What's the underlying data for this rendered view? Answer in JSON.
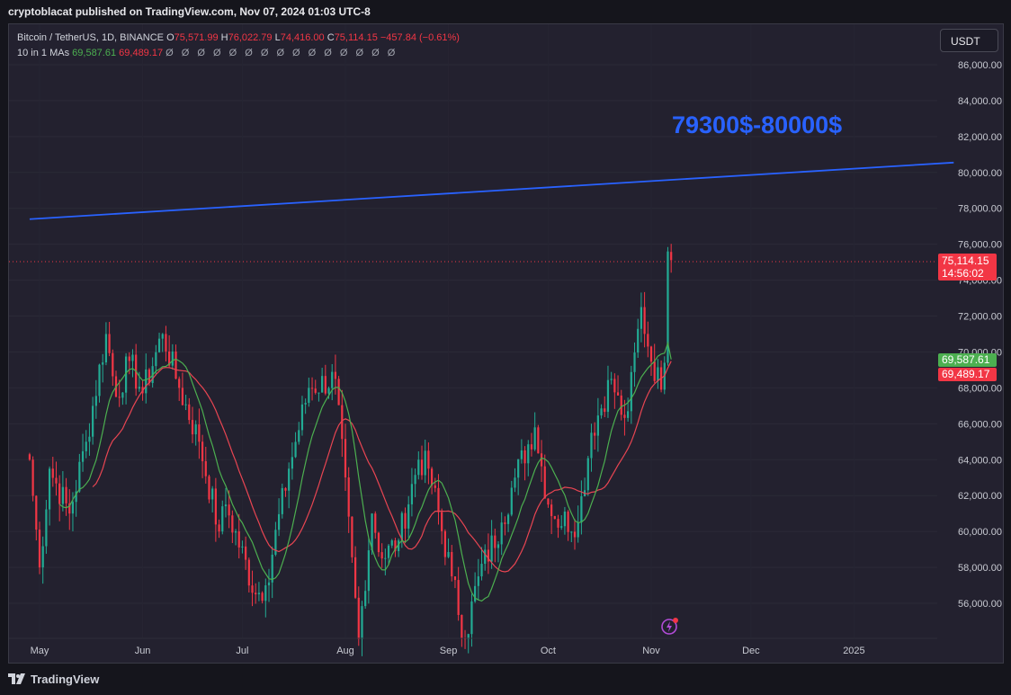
{
  "header": {
    "publisher_text": "cryptoblacat published on TradingView.com, Nov 07, 2024 01:03 UTC-8"
  },
  "legend": {
    "symbol": "Bitcoin / TetherUS, 1D, BINANCE",
    "o_label": "O",
    "o_value": "75,571.99",
    "h_label": "H",
    "h_value": "76,022.79",
    "l_label": "L",
    "l_value": "74,416.00",
    "c_label": "C",
    "c_value": "75,114.15",
    "change": "−457.84 (−0.61%)",
    "indicator_label": "10 in 1 MAs",
    "ma1_value": "69,587.61",
    "ma2_value": "69,489.17",
    "extra_values": "Ø Ø Ø Ø Ø Ø Ø Ø Ø Ø Ø Ø Ø Ø Ø"
  },
  "currency_button": {
    "label": "USDT"
  },
  "price_tags": {
    "last_price": "75,114.15",
    "countdown": "14:56:02",
    "ma1": "69,587.61",
    "ma2": "69,489.17"
  },
  "annotation": {
    "text": "79300$-80000$"
  },
  "footer": {
    "brand": "TradingView"
  },
  "colors": {
    "up": "#22ab94",
    "down": "#f23645",
    "ma_fast": "#4caf50",
    "ma_slow": "#e84552",
    "trendline": "#2962ff",
    "background": "#23212f"
  },
  "chart_data": {
    "type": "candlestick",
    "symbol": "Bitcoin / TetherUS, 1D, BINANCE",
    "y_axis": {
      "range": [
        54000,
        88000
      ],
      "ticks": [
        "56,000.00",
        "58,000.00",
        "60,000.00",
        "62,000.00",
        "64,000.00",
        "66,000.00",
        "68,000.00",
        "70,000.00",
        "72,000.00",
        "74,000.00",
        "76,000.00",
        "78,000.00",
        "80,000.00",
        "82,000.00",
        "84,000.00",
        "86,000.00"
      ]
    },
    "x_axis": {
      "range": [
        "2024-04-28",
        "2025-01-31"
      ],
      "ticks": [
        {
          "label": "May",
          "date": "2024-05-01"
        },
        {
          "label": "Jun",
          "date": "2024-06-01"
        },
        {
          "label": "Jul",
          "date": "2024-07-01"
        },
        {
          "label": "Aug",
          "date": "2024-08-01"
        },
        {
          "label": "Sep",
          "date": "2024-09-01"
        },
        {
          "label": "Oct",
          "date": "2024-10-01"
        },
        {
          "label": "Nov",
          "date": "2024-11-01"
        },
        {
          "label": "Dec",
          "date": "2024-12-01"
        },
        {
          "label": "2025",
          "date": "2025-01-01"
        }
      ]
    },
    "last_price": 75114.15,
    "anchors": [
      [
        "2024-04-28",
        64000
      ],
      [
        "2024-05-01",
        58000
      ],
      [
        "2024-05-04",
        63500
      ],
      [
        "2024-05-10",
        61000
      ],
      [
        "2024-05-15",
        65000
      ],
      [
        "2024-05-21",
        71000
      ],
      [
        "2024-05-24",
        67500
      ],
      [
        "2024-05-28",
        69500
      ],
      [
        "2024-06-01",
        67700
      ],
      [
        "2024-06-07",
        71000
      ],
      [
        "2024-06-12",
        68000
      ],
      [
        "2024-06-18",
        65000
      ],
      [
        "2024-06-24",
        60000
      ],
      [
        "2024-06-26",
        61500
      ],
      [
        "2024-07-05",
        56500
      ],
      [
        "2024-07-08",
        57000
      ],
      [
        "2024-07-15",
        63500
      ],
      [
        "2024-07-21",
        68000
      ],
      [
        "2024-07-29",
        68500
      ],
      [
        "2024-08-05",
        54000
      ],
      [
        "2024-08-09",
        61000
      ],
      [
        "2024-08-12",
        58500
      ],
      [
        "2024-08-17",
        59500
      ],
      [
        "2024-08-23",
        64000
      ],
      [
        "2024-08-26",
        63500
      ],
      [
        "2024-09-02",
        57500
      ],
      [
        "2024-09-06",
        54000
      ],
      [
        "2024-09-10",
        57500
      ],
      [
        "2024-09-17",
        60500
      ],
      [
        "2024-09-21",
        63000
      ],
      [
        "2024-09-27",
        65800
      ],
      [
        "2024-10-01",
        61500
      ],
      [
        "2024-10-03",
        60700
      ],
      [
        "2024-10-10",
        60500
      ],
      [
        "2024-10-14",
        65500
      ],
      [
        "2024-10-20",
        68500
      ],
      [
        "2024-10-23",
        66500
      ],
      [
        "2024-10-25",
        66700
      ],
      [
        "2024-10-29",
        72500
      ],
      [
        "2024-10-31",
        70300
      ],
      [
        "2024-11-04",
        67900
      ],
      [
        "2024-11-05",
        69400
      ],
      [
        "2024-11-06",
        75600
      ],
      [
        "2024-11-07",
        75114
      ]
    ],
    "moving_averages": [
      {
        "name": "10 in 1 MAs",
        "value": 69587.61,
        "color": "#4caf50"
      },
      {
        "value": 69489.17,
        "color": "#e84552"
      }
    ],
    "trendline": {
      "label": "79300$-80000$",
      "start": [
        "2024-04-28",
        77400
      ],
      "end": [
        "2025-01-31",
        80550
      ],
      "color": "#2962ff"
    }
  }
}
